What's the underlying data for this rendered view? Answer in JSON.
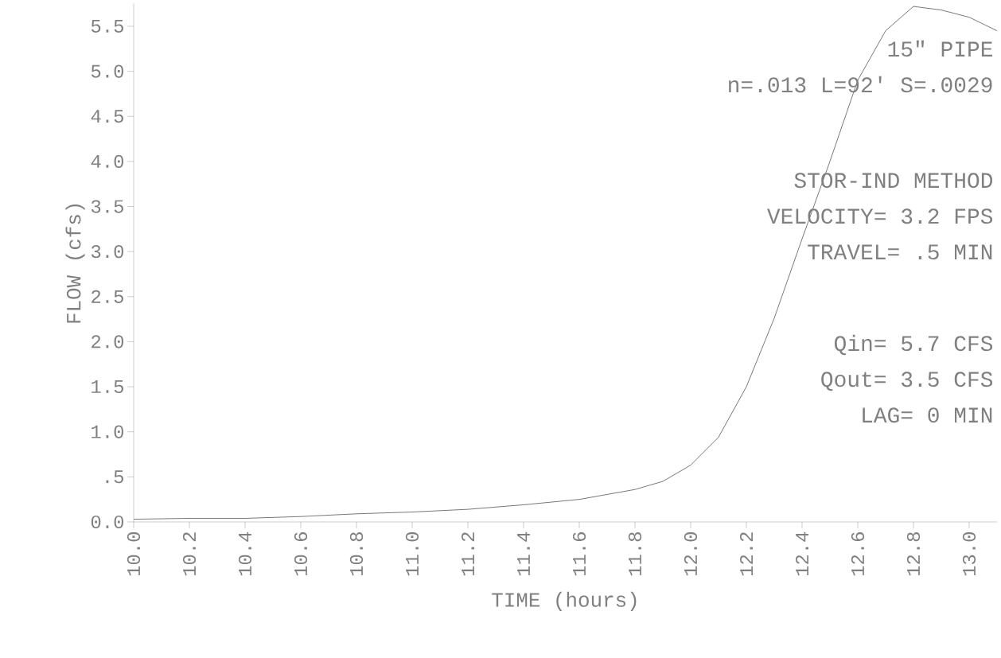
{
  "chart_data": {
    "type": "line",
    "xlabel": "TIME (hours)",
    "ylabel": "FLOW (cfs)",
    "x": [
      10.0,
      10.2,
      10.4,
      10.6,
      10.8,
      11.0,
      11.2,
      11.4,
      11.6,
      11.8,
      11.9,
      12.0,
      12.1,
      12.2,
      12.3,
      12.4,
      12.5,
      12.6,
      12.7,
      12.8,
      12.9,
      13.0,
      13.1
    ],
    "values": [
      0.03,
      0.04,
      0.04,
      0.06,
      0.09,
      0.11,
      0.14,
      0.19,
      0.25,
      0.36,
      0.45,
      0.63,
      0.94,
      1.5,
      2.26,
      3.14,
      4.0,
      4.9,
      5.45,
      5.72,
      5.68,
      5.6,
      5.45
    ],
    "color": "#555555",
    "xlim": [
      10.0,
      13.1
    ],
    "ylim": [
      0,
      5.75
    ],
    "xticks": [
      {
        "value": 10.0,
        "label": "10.0"
      },
      {
        "value": 10.2,
        "label": "10.2"
      },
      {
        "value": 10.4,
        "label": "10.4"
      },
      {
        "value": 10.6,
        "label": "10.6"
      },
      {
        "value": 10.8,
        "label": "10.8"
      },
      {
        "value": 11.0,
        "label": "11.0"
      },
      {
        "value": 11.2,
        "label": "11.2"
      },
      {
        "value": 11.4,
        "label": "11.4"
      },
      {
        "value": 11.6,
        "label": "11.6"
      },
      {
        "value": 11.8,
        "label": "11.8"
      },
      {
        "value": 12.0,
        "label": "12.0"
      },
      {
        "value": 12.2,
        "label": "12.2"
      },
      {
        "value": 12.4,
        "label": "12.4"
      },
      {
        "value": 12.6,
        "label": "12.6"
      },
      {
        "value": 12.8,
        "label": "12.8"
      },
      {
        "value": 13.0,
        "label": "13.0"
      }
    ],
    "yticks": [
      {
        "value": 0,
        "label": "0.0"
      },
      {
        "value": 0.5,
        "label": ".5"
      },
      {
        "value": 1.0,
        "label": "1.0"
      },
      {
        "value": 1.5,
        "label": "1.5"
      },
      {
        "value": 2.0,
        "label": "2.0"
      },
      {
        "value": 2.5,
        "label": "2.5"
      },
      {
        "value": 3.0,
        "label": "3.0"
      },
      {
        "value": 3.5,
        "label": "3.5"
      },
      {
        "value": 4.0,
        "label": "4.0"
      },
      {
        "value": 4.5,
        "label": "4.5"
      },
      {
        "value": 5.0,
        "label": "5.0"
      },
      {
        "value": 5.5,
        "label": "5.5"
      }
    ],
    "annotations": [
      "15\" PIPE",
      "n=.013 L=92' S=.0029",
      "STOR-IND METHOD",
      "VELOCITY= 3.2 FPS",
      "TRAVEL= .5 MIN",
      "Qin= 5.7 CFS",
      "Qout= 3.5 CFS",
      "LAG= 0 MIN"
    ],
    "grid": false
  }
}
